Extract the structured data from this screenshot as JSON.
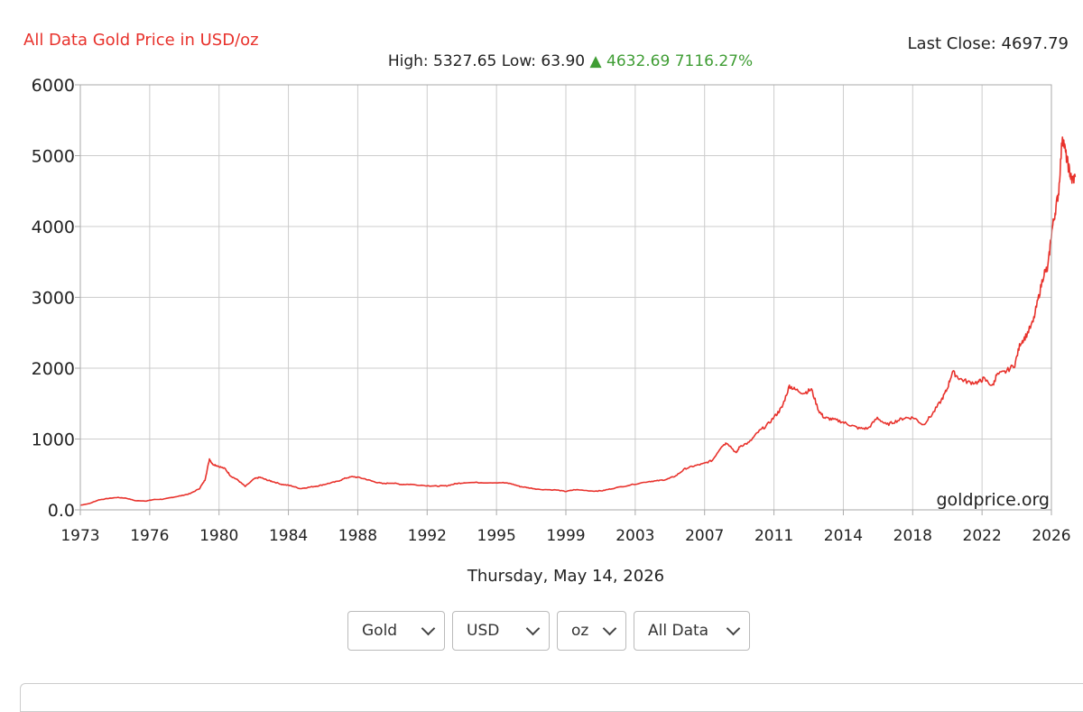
{
  "header": {
    "title": "All Data Gold Price in USD/oz",
    "last_close": "Last Close: 4697.79",
    "high_low": "High: 5327.65 Low: 63.90",
    "change_arrow": "▲",
    "change": "4632.69 7116.27%",
    "change_color": "#3f9d34"
  },
  "watermark": "goldprice.org",
  "date_label": "Thursday, May 14, 2026",
  "controls": {
    "metal": "Gold",
    "currency": "USD",
    "unit": "oz",
    "range": "All Data"
  },
  "chart_data": {
    "type": "line",
    "title": "All Data Gold Price in USD/oz",
    "xlabel": "",
    "ylabel": "",
    "xlim": [
      1973,
      2026
    ],
    "ylim": [
      0,
      6000
    ],
    "grid": true,
    "line_color": "#e8322c",
    "x_ticks": [
      "1973",
      "1976",
      "1980",
      "1984",
      "1988",
      "1992",
      "1995",
      "1999",
      "2003",
      "2007",
      "2011",
      "2014",
      "2018",
      "2022",
      "2026"
    ],
    "y_ticks": [
      "0.0",
      "1000",
      "2000",
      "3000",
      "4000",
      "5000",
      "6000"
    ],
    "series": [
      {
        "x": [
          1973.0,
          1973.5,
          1974.0,
          1974.5,
          1975.0,
          1975.5,
          1976.0,
          1976.6,
          1977.0,
          1977.5,
          1978.0,
          1978.5,
          1979.0,
          1979.5,
          1979.8,
          1980.05,
          1980.2,
          1980.5,
          1980.9,
          1981.2,
          1981.6,
          1982.0,
          1982.5,
          1982.8,
          1983.2,
          1983.5,
          1984.0,
          1984.5,
          1985.0,
          1985.5,
          1986.0,
          1986.5,
          1987.0,
          1987.5,
          1987.9,
          1988.5,
          1989.0,
          1989.5,
          1990.0,
          1990.5,
          1991.0,
          1992.0,
          1992.5,
          1993.0,
          1993.5,
          1994.0,
          1995.0,
          1996.0,
          1996.5,
          1997.0,
          1997.5,
          1998.0,
          1999.0,
          1999.5,
          2000.0,
          2001.0,
          2001.5,
          2002.0,
          2003.0,
          2004.0,
          2004.5,
          2005.0,
          2005.5,
          2006.0,
          2006.5,
          2007.0,
          2007.5,
          2008.0,
          2008.3,
          2008.8,
          2009.0,
          2009.5,
          2010.0,
          2010.5,
          2011.0,
          2011.3,
          2011.7,
          2012.0,
          2012.5,
          2012.9,
          2013.3,
          2013.6,
          2014.0,
          2014.5,
          2015.0,
          2015.5,
          2016.0,
          2016.5,
          2017.0,
          2017.5,
          2018.0,
          2018.5,
          2019.0,
          2019.5,
          2020.0,
          2020.3,
          2020.6,
          2021.0,
          2021.5,
          2022.0,
          2022.3,
          2022.8,
          2023.0,
          2023.5,
          2024.0,
          2024.3,
          2024.6,
          2025.0,
          2025.3,
          2025.6,
          2025.8,
          2026.0,
          2026.2,
          2026.4,
          2026.6,
          2026.8,
          2026.97,
          2027.1,
          2027.3
        ],
        "values": [
          65,
          90,
          140,
          160,
          175,
          165,
          130,
          125,
          145,
          150,
          175,
          200,
          230,
          300,
          420,
          720,
          650,
          620,
          580,
          480,
          420,
          330,
          440,
          460,
          420,
          400,
          360,
          340,
          300,
          320,
          340,
          370,
          400,
          450,
          470,
          440,
          400,
          370,
          380,
          360,
          360,
          340,
          335,
          340,
          370,
          385,
          385,
          385,
          370,
          330,
          310,
          290,
          280,
          260,
          285,
          265,
          270,
          300,
          350,
          400,
          410,
          430,
          480,
          580,
          620,
          650,
          700,
          900,
          950,
          800,
          900,
          950,
          1100,
          1200,
          1350,
          1450,
          1750,
          1700,
          1650,
          1700,
          1400,
          1300,
          1280,
          1250,
          1200,
          1150,
          1150,
          1300,
          1200,
          1250,
          1300,
          1300,
          1200,
          1350,
          1550,
          1700,
          1950,
          1850,
          1800,
          1800,
          1850,
          1750,
          1900,
          1950,
          2050,
          2350,
          2450,
          2650,
          3000,
          3350,
          3400,
          3900,
          4200,
          4500,
          5300,
          5000,
          4800,
          4650,
          4698
        ]
      }
    ]
  }
}
